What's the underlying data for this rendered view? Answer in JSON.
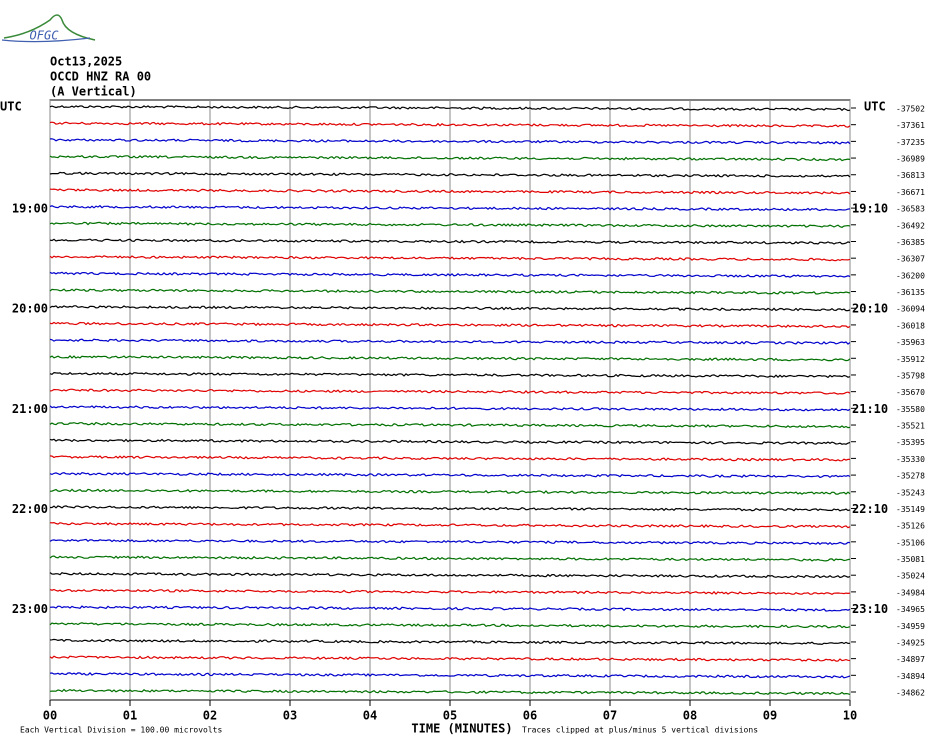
{
  "chart_data": {
    "type": "helicorder",
    "logo": "OFGC",
    "title_lines": [
      "Oct13,2025",
      "OCCD HNZ RA 00",
      "(A Vertical)"
    ],
    "left_axis_title": "UTC",
    "right_axis_title": "UTC",
    "x_label": "TIME (MINUTES)",
    "scale_note": "Each Vertical Division =  100.00 microvolts",
    "clip_note": "Traces clipped at plus/minus 5 vertical divisions",
    "colors": [
      "#000000",
      "#e00000",
      "#0000cc",
      "#007000"
    ],
    "xlim": [
      0,
      10
    ],
    "xticks": [
      {
        "value": 0,
        "label": "00"
      },
      {
        "value": 1,
        "label": "01"
      },
      {
        "value": 2,
        "label": "02"
      },
      {
        "value": 3,
        "label": "03"
      },
      {
        "value": 4,
        "label": "04"
      },
      {
        "value": 5,
        "label": "05"
      },
      {
        "value": 6,
        "label": "06"
      },
      {
        "value": 7,
        "label": "07"
      },
      {
        "value": 8,
        "label": "08"
      },
      {
        "value": 9,
        "label": "09"
      },
      {
        "value": 10,
        "label": "10"
      }
    ],
    "grid": true,
    "left_labels": [
      null,
      null,
      null,
      null,
      null,
      null,
      "19:00",
      null,
      null,
      null,
      null,
      null,
      "20:00",
      null,
      null,
      null,
      null,
      null,
      "21:00",
      null,
      null,
      null,
      null,
      null,
      "22:00",
      null,
      null,
      null,
      null,
      null,
      "23:00",
      null,
      null,
      null,
      null,
      null
    ],
    "right_labels": [
      null,
      null,
      null,
      null,
      null,
      null,
      "19:10",
      null,
      null,
      null,
      null,
      null,
      "20:10",
      null,
      null,
      null,
      null,
      null,
      "21:10",
      null,
      null,
      null,
      null,
      null,
      "22:10",
      null,
      null,
      null,
      null,
      null,
      "23:10",
      null,
      null,
      null,
      null,
      null
    ],
    "offsets": [
      -37502,
      -37361,
      -37235,
      -36989,
      -36813,
      -36671,
      -36583,
      -36492,
      -36385,
      -36307,
      -36200,
      -36135,
      -36094,
      -36018,
      -35963,
      -35912,
      -35798,
      -35670,
      -35580,
      -35521,
      -35395,
      -35330,
      -35278,
      -35243,
      -35149,
      -35126,
      -35106,
      -35081,
      -35024,
      -34984,
      -34965,
      -34959,
      -34925,
      -34897,
      -34894,
      -34862
    ]
  }
}
